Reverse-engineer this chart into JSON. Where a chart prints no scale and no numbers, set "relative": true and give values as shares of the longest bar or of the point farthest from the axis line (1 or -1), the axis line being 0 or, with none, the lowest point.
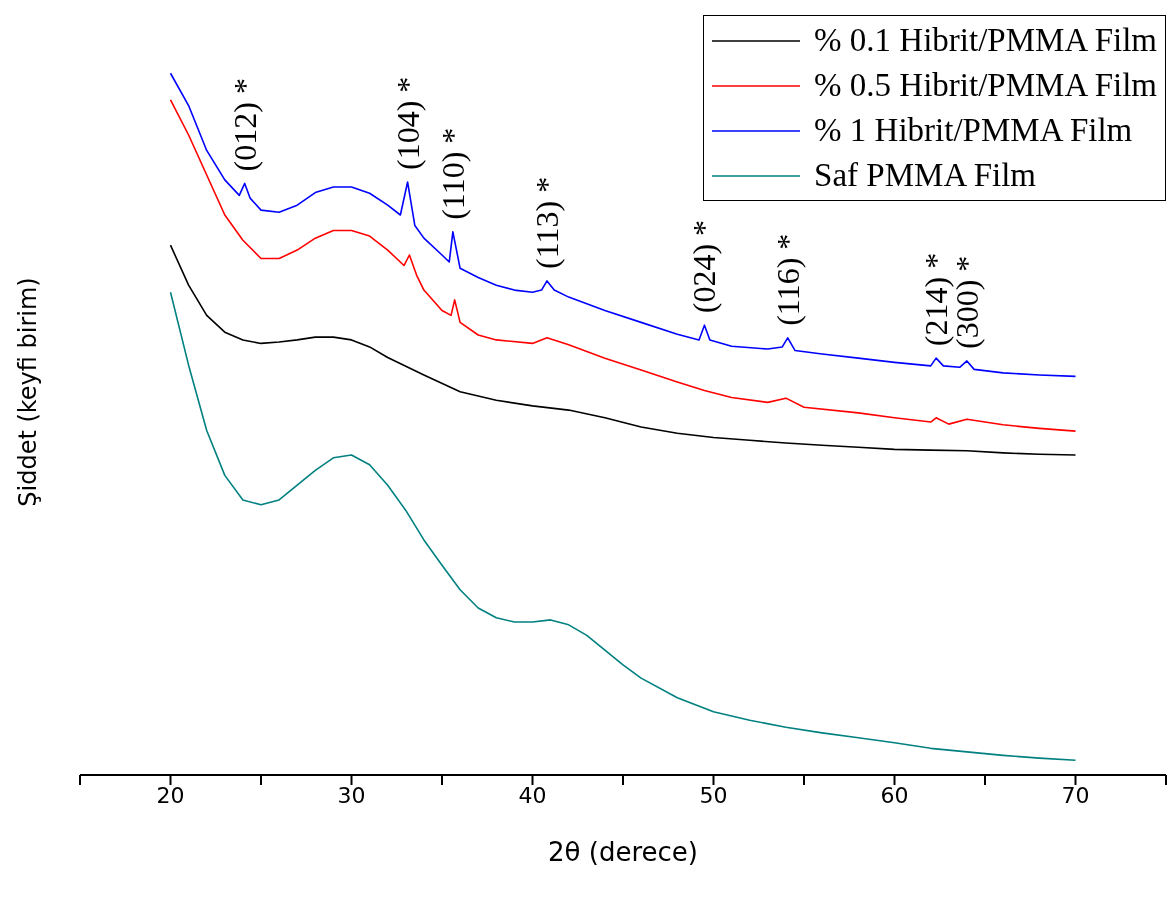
{
  "chart_data": {
    "type": "line",
    "relative": true,
    "xlabel": "2θ (derece)",
    "ylabel": "Şiddet (keyfi birim)",
    "xlim": [
      15,
      75
    ],
    "xticks": [
      {
        "value": 15,
        "label": null
      },
      20,
      {
        "value": 25,
        "label": null
      },
      30,
      {
        "value": 35,
        "label": null
      },
      40,
      {
        "value": 45,
        "label": null
      },
      50,
      {
        "value": 55,
        "label": null
      },
      60,
      {
        "value": 65,
        "label": null
      },
      70,
      {
        "value": 75,
        "label": null
      }
    ],
    "legend": "top right",
    "marker": "none",
    "line_style": "solid",
    "series": [
      {
        "name": "% 0.1 Hibrit/PMMA Film",
        "color": "#000000",
        "x": [
          20,
          21,
          22,
          23,
          24,
          25,
          26,
          27,
          28,
          29,
          30,
          31,
          32,
          34,
          36,
          38,
          40,
          42,
          44,
          46,
          48,
          50,
          52,
          54,
          56,
          58,
          60,
          62,
          64,
          66,
          68,
          70
        ],
        "values": [
          0.755,
          0.698,
          0.655,
          0.631,
          0.62,
          0.615,
          0.617,
          0.62,
          0.624,
          0.624,
          0.62,
          0.61,
          0.595,
          0.57,
          0.546,
          0.534,
          0.526,
          0.52,
          0.509,
          0.496,
          0.487,
          0.481,
          0.477,
          0.473,
          0.47,
          0.467,
          0.464,
          0.463,
          0.462,
          0.459,
          0.457,
          0.456
        ]
      },
      {
        "name": "% 0.5 Hibrit/PMMA Film",
        "color": "#ff0000",
        "x": [
          20,
          21,
          22,
          23,
          24,
          25,
          26,
          27,
          28,
          29,
          30,
          31,
          32,
          32.9,
          33.2,
          33.6,
          34,
          35,
          35.5,
          35.7,
          36,
          37,
          38,
          40,
          40.8,
          42,
          44,
          46,
          48,
          49.5,
          51,
          53,
          54,
          55,
          58,
          60,
          62,
          62.3,
          63,
          64,
          66,
          68,
          70
        ],
        "values": [
          0.962,
          0.912,
          0.855,
          0.798,
          0.762,
          0.736,
          0.736,
          0.748,
          0.765,
          0.776,
          0.776,
          0.768,
          0.748,
          0.726,
          0.741,
          0.712,
          0.691,
          0.662,
          0.655,
          0.677,
          0.645,
          0.627,
          0.62,
          0.615,
          0.623,
          0.613,
          0.594,
          0.577,
          0.56,
          0.548,
          0.538,
          0.531,
          0.537,
          0.524,
          0.516,
          0.509,
          0.503,
          0.509,
          0.5,
          0.507,
          0.499,
          0.494,
          0.49
        ]
      },
      {
        "name": "% 1 Hibrit/PMMA Film",
        "color": "#0000ff",
        "x": [
          20,
          21,
          22,
          23,
          23.8,
          24.1,
          24.4,
          25,
          26,
          27,
          28,
          29,
          30,
          31,
          32,
          32.7,
          33.1,
          33.5,
          34,
          35,
          35.4,
          35.6,
          36,
          37,
          38,
          39,
          40,
          40.5,
          40.8,
          41.2,
          42,
          44,
          46,
          48,
          49.2,
          49.5,
          49.8,
          51,
          53,
          53.8,
          54.1,
          54.5,
          56,
          58,
          60,
          62,
          62.3,
          62.7,
          63.6,
          64,
          64.4,
          66,
          68,
          70
        ],
        "values": [
          1.0,
          0.954,
          0.89,
          0.848,
          0.826,
          0.843,
          0.822,
          0.805,
          0.802,
          0.812,
          0.83,
          0.838,
          0.838,
          0.829,
          0.812,
          0.798,
          0.845,
          0.783,
          0.765,
          0.741,
          0.731,
          0.774,
          0.722,
          0.709,
          0.698,
          0.691,
          0.688,
          0.691,
          0.704,
          0.691,
          0.681,
          0.662,
          0.645,
          0.628,
          0.62,
          0.641,
          0.62,
          0.611,
          0.607,
          0.61,
          0.623,
          0.605,
          0.6,
          0.594,
          0.588,
          0.583,
          0.594,
          0.583,
          0.581,
          0.59,
          0.578,
          0.573,
          0.57,
          0.568
        ]
      },
      {
        "name": "Saf PMMA Film",
        "color": "#008080",
        "x": [
          20,
          21,
          22,
          23,
          24,
          25,
          26,
          27,
          28,
          29,
          30,
          31,
          32,
          33,
          34,
          35,
          36,
          37,
          38,
          39,
          40,
          41,
          42,
          43,
          44,
          45,
          46,
          48,
          50,
          52,
          54,
          56,
          58,
          60,
          62,
          64,
          66,
          68,
          70
        ],
        "values": [
          0.688,
          0.584,
          0.491,
          0.427,
          0.392,
          0.385,
          0.392,
          0.413,
          0.434,
          0.452,
          0.456,
          0.442,
          0.413,
          0.377,
          0.335,
          0.299,
          0.264,
          0.238,
          0.224,
          0.218,
          0.218,
          0.221,
          0.214,
          0.199,
          0.178,
          0.157,
          0.138,
          0.11,
          0.09,
          0.078,
          0.068,
          0.06,
          0.053,
          0.046,
          0.038,
          0.033,
          0.028,
          0.024,
          0.021
        ]
      }
    ],
    "annotations": [
      {
        "text": "(012) *",
        "x": 24.1,
        "y": 0.843
      },
      {
        "text": "(104) *",
        "x": 33.1,
        "y": 0.845
      },
      {
        "text": "(110) *",
        "x": 35.6,
        "y": 0.774
      },
      {
        "text": "(113) *",
        "x": 40.8,
        "y": 0.704
      },
      {
        "text": "(024) *",
        "x": 49.5,
        "y": 0.641
      },
      {
        "text": "(116) *",
        "x": 54.1,
        "y": 0.623
      },
      {
        "text": "(214) *",
        "x": 62.3,
        "y": 0.594
      },
      {
        "text": "(300) *",
        "x": 64.0,
        "y": 0.59
      }
    ]
  }
}
